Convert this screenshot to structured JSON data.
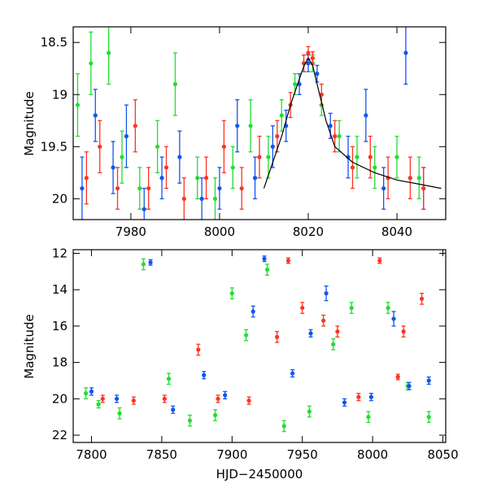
{
  "chart_data": [
    {
      "type": "scatter",
      "panel": "top",
      "xlabel": "",
      "ylabel": "Magnitude",
      "xlim": [
        7967,
        8051
      ],
      "ylim": [
        20.2,
        18.35
      ],
      "y_inverted": true,
      "x_ticks": [
        7980,
        8000,
        8020,
        8040
      ],
      "x_tick_labels": [
        "7980",
        "8000",
        "8020",
        "8040"
      ],
      "y_ticks": [
        18.5,
        19,
        19.5,
        20
      ],
      "y_tick_labels": [
        "18.5",
        "19",
        "19.5",
        "20"
      ],
      "grid": false,
      "series_colors": [
        "#22dd33",
        "#1155ee",
        "#ff3322"
      ],
      "model_curve": {
        "color": "#000000",
        "x": [
          8010,
          8014,
          8016,
          8018,
          8019,
          8020,
          8021,
          8022,
          8024,
          8026,
          8030,
          8035,
          8040,
          8045,
          8050
        ],
        "y": [
          19.9,
          19.4,
          19.1,
          18.85,
          18.73,
          18.65,
          18.72,
          18.9,
          19.25,
          19.5,
          19.65,
          19.75,
          19.82,
          19.86,
          19.9
        ]
      },
      "series": [
        {
          "color": "#22dd33",
          "x": [
            7968,
            7971,
            7975,
            7978,
            7982,
            7986,
            7990,
            7995,
            7999,
            8003,
            8007,
            8011,
            8014,
            8017,
            8019,
            8021,
            8023,
            8027,
            8031,
            8035,
            8040,
            8045
          ],
          "y": [
            19.1,
            18.7,
            18.6,
            19.6,
            19.9,
            19.5,
            18.9,
            19.8,
            20.0,
            19.7,
            19.3,
            19.6,
            19.2,
            18.9,
            18.7,
            18.7,
            19.1,
            19.4,
            19.6,
            19.7,
            19.6,
            19.8
          ],
          "err": [
            0.3,
            0.3,
            0.3,
            0.25,
            0.2,
            0.25,
            0.3,
            0.2,
            0.2,
            0.2,
            0.25,
            0.2,
            0.15,
            0.1,
            0.08,
            0.08,
            0.1,
            0.15,
            0.2,
            0.2,
            0.2,
            0.2
          ]
        },
        {
          "color": "#1155ee",
          "x": [
            7969,
            7972,
            7976,
            7979,
            7983,
            7987,
            7991,
            7996,
            8000,
            8004,
            8008,
            8012,
            8015,
            8018,
            8020,
            8022,
            8025,
            8029,
            8033,
            8037,
            8042,
            8046
          ],
          "y": [
            19.9,
            19.2,
            19.7,
            19.4,
            20.1,
            19.8,
            19.6,
            20.0,
            19.9,
            19.3,
            19.8,
            19.5,
            19.3,
            18.9,
            18.7,
            18.8,
            19.3,
            19.6,
            19.2,
            19.9,
            18.6,
            19.9
          ],
          "err": [
            0.3,
            0.25,
            0.25,
            0.3,
            0.2,
            0.2,
            0.25,
            0.2,
            0.2,
            0.25,
            0.2,
            0.2,
            0.15,
            0.1,
            0.08,
            0.08,
            0.12,
            0.2,
            0.25,
            0.2,
            0.3,
            0.2
          ]
        },
        {
          "color": "#ff3322",
          "x": [
            7970,
            7973,
            7977,
            7981,
            7984,
            7988,
            7992,
            7997,
            8001,
            8005,
            8009,
            8013,
            8016,
            8019,
            8020,
            8021,
            8023,
            8026,
            8030,
            8034,
            8038,
            8043,
            8046
          ],
          "y": [
            19.8,
            19.5,
            19.9,
            19.3,
            19.9,
            19.7,
            20.0,
            19.8,
            19.5,
            19.9,
            19.6,
            19.4,
            19.1,
            18.7,
            18.6,
            18.65,
            19.0,
            19.4,
            19.7,
            19.6,
            19.8,
            19.8,
            19.9
          ],
          "err": [
            0.25,
            0.25,
            0.2,
            0.25,
            0.2,
            0.2,
            0.2,
            0.2,
            0.25,
            0.2,
            0.2,
            0.15,
            0.12,
            0.08,
            0.06,
            0.06,
            0.1,
            0.15,
            0.2,
            0.2,
            0.2,
            0.2,
            0.2
          ]
        }
      ]
    },
    {
      "type": "scatter",
      "panel": "bottom",
      "xlabel": "HJD−2450000",
      "ylabel": "Magnitude",
      "xlim": [
        7787,
        8052
      ],
      "ylim": [
        22.4,
        11.8
      ],
      "y_inverted": true,
      "x_ticks": [
        7800,
        7850,
        7900,
        7950,
        8000,
        8050
      ],
      "x_tick_labels": [
        "7800",
        "7850",
        "7900",
        "7950",
        "8000",
        "8050"
      ],
      "y_ticks": [
        12,
        14,
        16,
        18,
        20,
        22
      ],
      "y_tick_labels": [
        "12",
        "14",
        "16",
        "18",
        "20",
        "22"
      ],
      "grid": false,
      "series": [
        {
          "color": "#22dd33",
          "x": [
            7796,
            7805,
            7820,
            7837,
            7855,
            7870,
            7888,
            7900,
            7910,
            7925,
            7937,
            7955,
            7972,
            7985,
            7997,
            8011,
            8025,
            8040
          ],
          "y": [
            19.7,
            20.3,
            20.8,
            12.6,
            18.9,
            21.2,
            20.9,
            14.2,
            16.5,
            12.9,
            21.5,
            20.7,
            17.0,
            15.0,
            21.0,
            15.0,
            19.3,
            21.0
          ],
          "err": [
            0.3,
            0.2,
            0.3,
            0.3,
            0.3,
            0.3,
            0.3,
            0.3,
            0.3,
            0.3,
            0.3,
            0.3,
            0.3,
            0.3,
            0.3,
            0.3,
            0.2,
            0.3
          ]
        },
        {
          "color": "#1155ee",
          "x": [
            7800,
            7818,
            7842,
            7858,
            7880,
            7895,
            7915,
            7923,
            7943,
            7956,
            7967,
            7980,
            7999,
            8015,
            8026,
            8040
          ],
          "y": [
            19.6,
            20.0,
            12.5,
            20.6,
            18.7,
            19.8,
            15.2,
            12.3,
            18.6,
            16.4,
            14.2,
            20.2,
            19.9,
            15.6,
            19.3,
            19.0
          ],
          "err": [
            0.2,
            0.2,
            0.15,
            0.2,
            0.2,
            0.2,
            0.3,
            0.15,
            0.2,
            0.2,
            0.4,
            0.2,
            0.2,
            0.4,
            0.2,
            0.2
          ]
        },
        {
          "color": "#ff3322",
          "x": [
            7808,
            7830,
            7852,
            7876,
            7890,
            7912,
            7932,
            7940,
            7950,
            7965,
            7975,
            7990,
            8005,
            8018,
            8022,
            8035
          ],
          "y": [
            20.0,
            20.1,
            20.0,
            17.3,
            20.0,
            20.1,
            16.6,
            12.4,
            15.0,
            15.7,
            16.3,
            19.9,
            12.4,
            18.8,
            16.3,
            14.5
          ],
          "err": [
            0.2,
            0.2,
            0.2,
            0.3,
            0.2,
            0.2,
            0.3,
            0.15,
            0.3,
            0.3,
            0.3,
            0.2,
            0.15,
            0.15,
            0.3,
            0.3
          ]
        }
      ]
    }
  ]
}
